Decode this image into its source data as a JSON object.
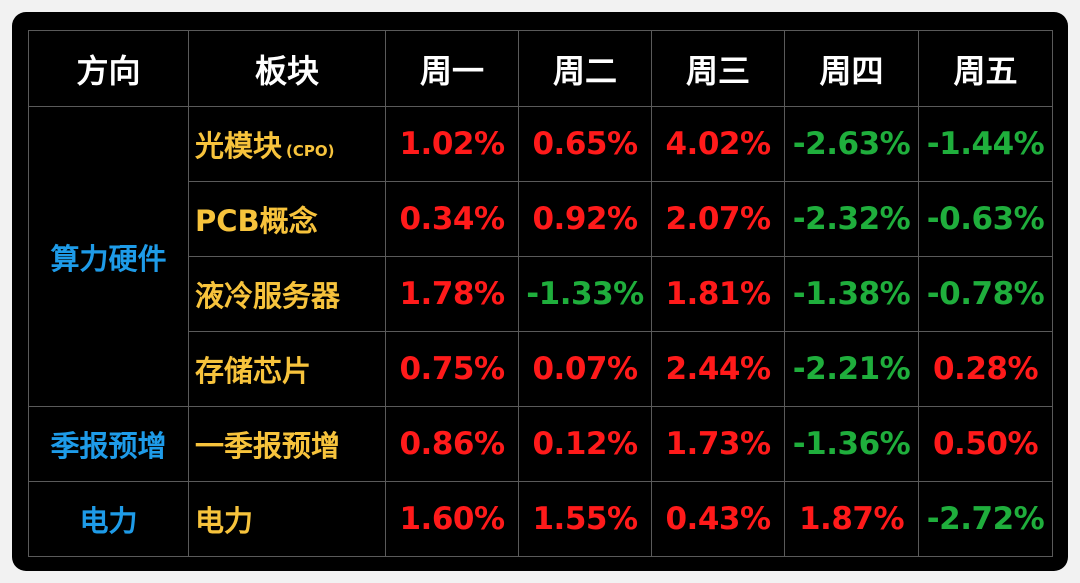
{
  "table": {
    "header": [
      "方向",
      "板块",
      "周一",
      "周二",
      "周三",
      "周四",
      "周五"
    ],
    "positive_color": "#ff1a1a",
    "negative_color": "#1fae3c",
    "groups": [
      {
        "name": "算力硬件",
        "rows": [
          {
            "sector": "光模块",
            "note": "(CPO)",
            "values": [
              "1.02%",
              "0.65%",
              "4.02%",
              "-2.63%",
              "-1.44%"
            ]
          },
          {
            "sector": "PCB概念",
            "values": [
              "0.34%",
              "0.92%",
              "2.07%",
              "-2.32%",
              "-0.63%"
            ]
          },
          {
            "sector": "液冷服务器",
            "values": [
              "1.78%",
              "-1.33%",
              "1.81%",
              "-1.38%",
              "-0.78%"
            ]
          },
          {
            "sector": "存储芯片",
            "values": [
              "0.75%",
              "0.07%",
              "2.44%",
              "-2.21%",
              "0.28%"
            ]
          }
        ]
      },
      {
        "name": "季报预增",
        "rows": [
          {
            "sector": "一季报预增",
            "values": [
              "0.86%",
              "0.12%",
              "1.73%",
              "-1.36%",
              "0.50%"
            ]
          }
        ]
      },
      {
        "name": "电力",
        "rows": [
          {
            "sector": "电力",
            "values": [
              "1.60%",
              "1.55%",
              "0.43%",
              "1.87%",
              "-2.72%"
            ]
          }
        ]
      }
    ]
  }
}
